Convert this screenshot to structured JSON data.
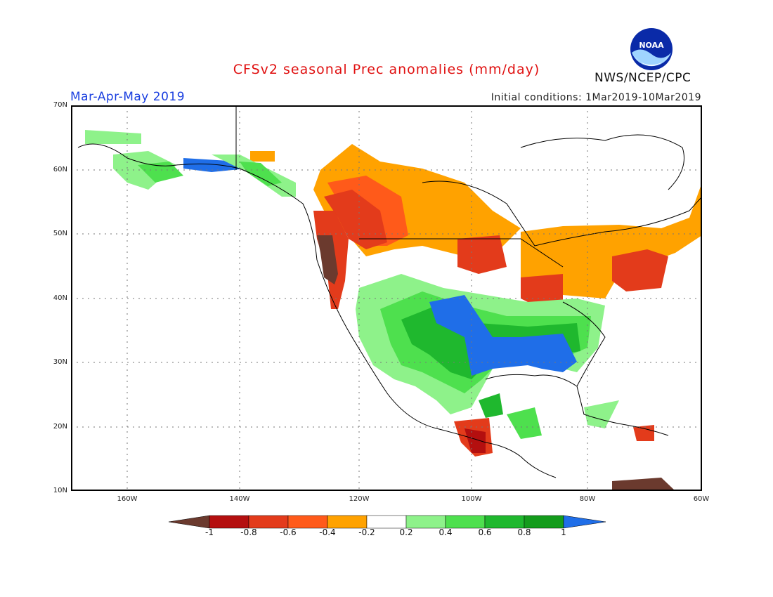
{
  "title": "CFSv2 seasonal Prec anomalies (mm/day)",
  "season": "Mar-Apr-May 2019",
  "initial_conditions": "Initial conditions: 1Mar2019-10Mar2019",
  "agency": "NWS/NCEP/CPC",
  "logo_text": "NOAA",
  "map": {
    "lon_range": [
      -172,
      -60
    ],
    "lat_range": [
      10,
      70
    ],
    "lat_labels": [
      "70N",
      "60N",
      "50N",
      "40N",
      "30N",
      "20N",
      "10N"
    ],
    "lon_labels": [
      "160W",
      "140W",
      "120W",
      "100W",
      "80W",
      "60W"
    ],
    "gridlines": true
  },
  "colorbar": {
    "labels": [
      "-1",
      "-0.8",
      "-0.6",
      "-0.4",
      "-0.2",
      "0.2",
      "0.4",
      "0.6",
      "0.8",
      "1"
    ],
    "colors": [
      "#6b3a2e",
      "#b40f0f",
      "#e33b1b",
      "#ff5a1a",
      "#ffa200",
      "#ffffff",
      "#8ef28a",
      "#4ee04e",
      "#1fb82e",
      "#149c1c",
      "#1f6ee8"
    ]
  },
  "colors": {
    "title": "#e01010",
    "season": "#1a3fe0"
  }
}
